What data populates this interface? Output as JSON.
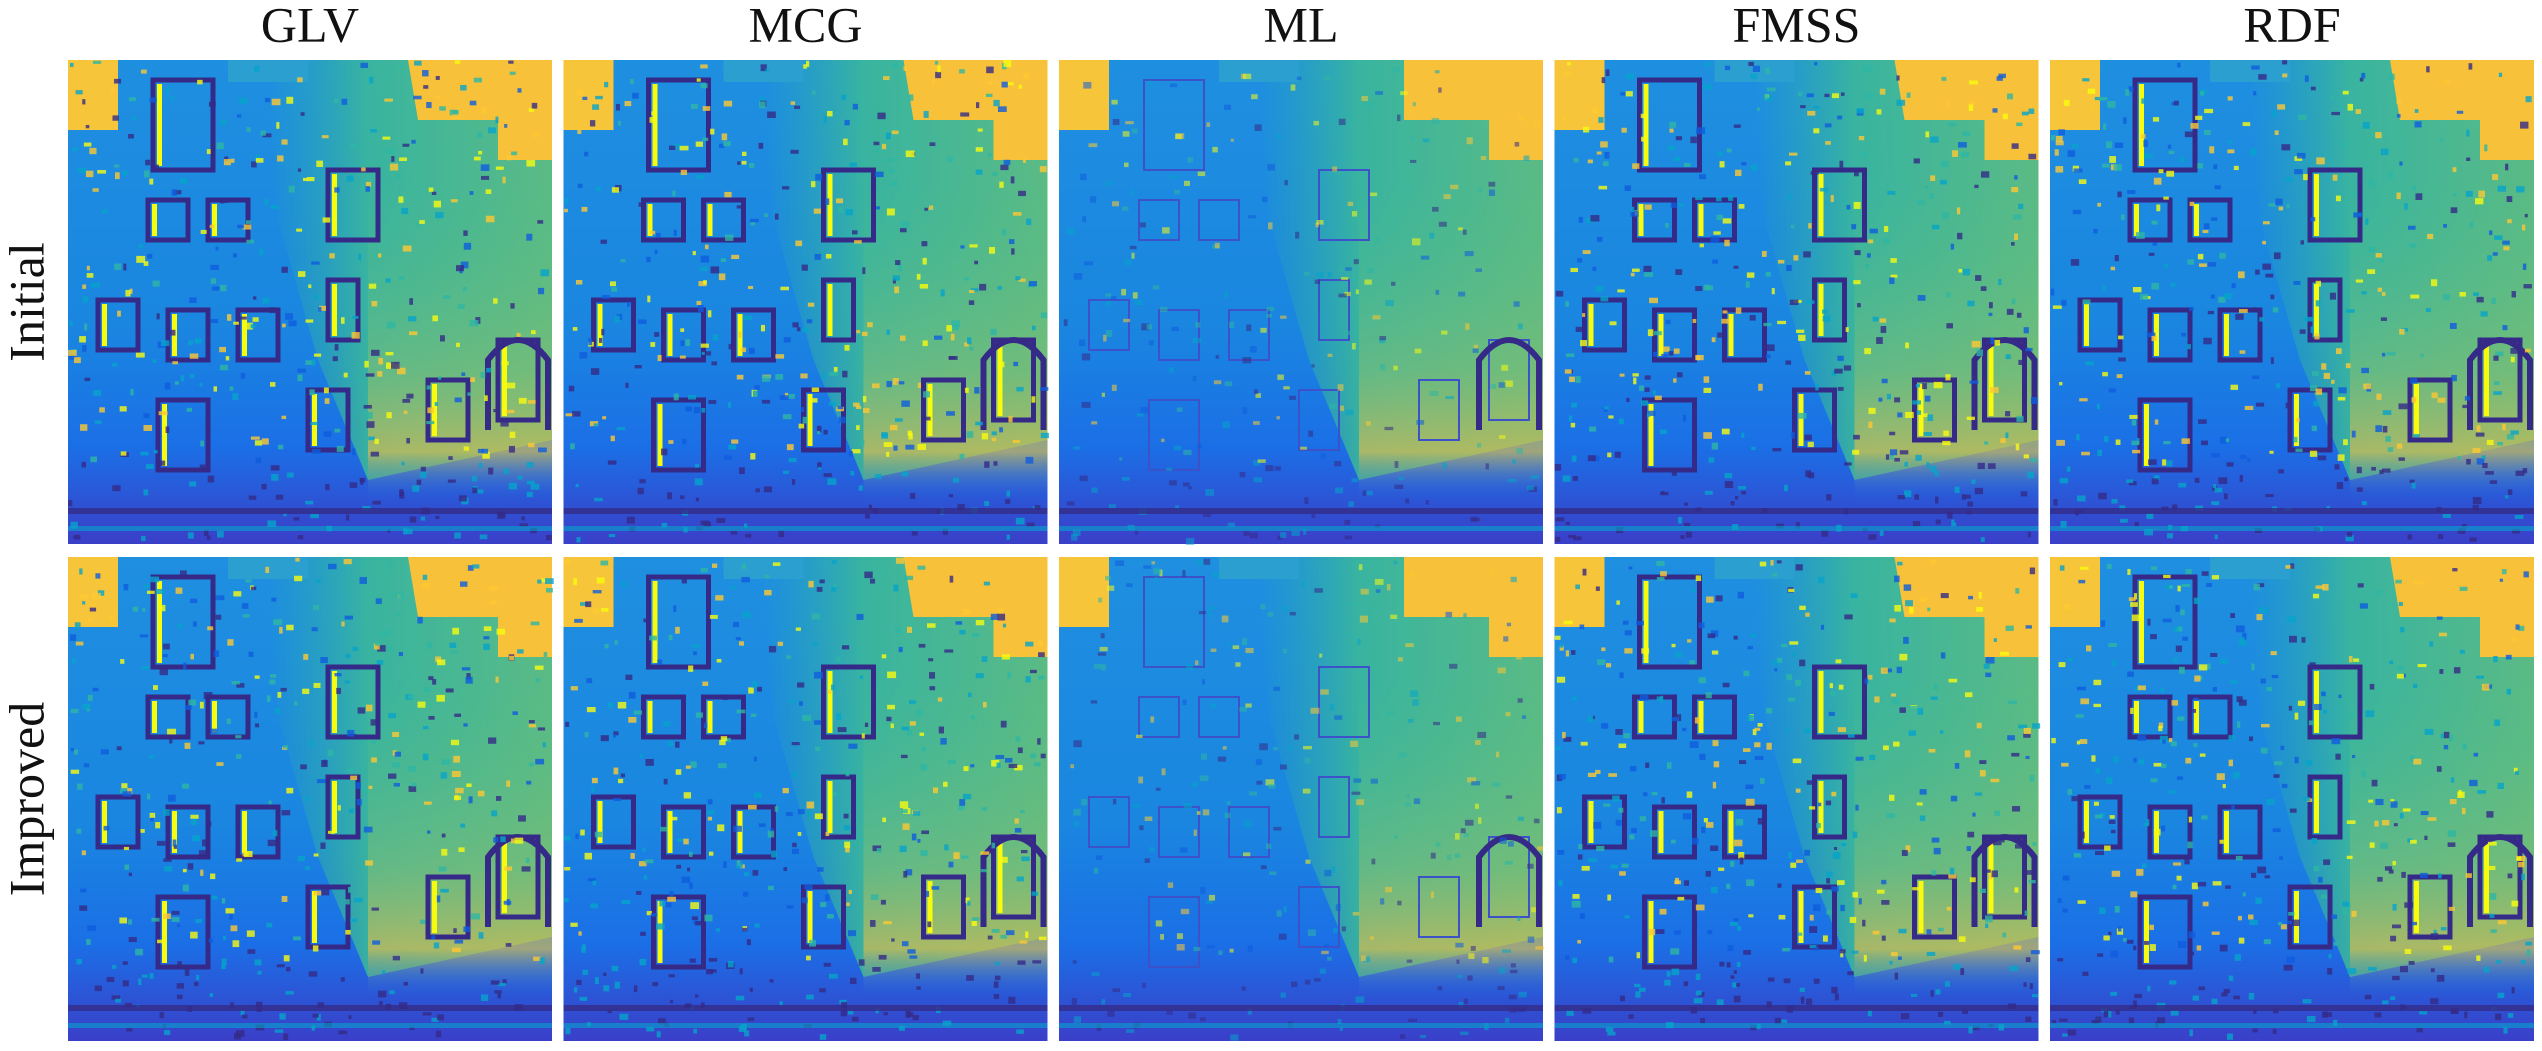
{
  "figure": {
    "columns": [
      "GLV",
      "MCG",
      "ML",
      "FMSS",
      "RDF"
    ],
    "rows": [
      "Initial",
      "Improved"
    ]
  }
}
